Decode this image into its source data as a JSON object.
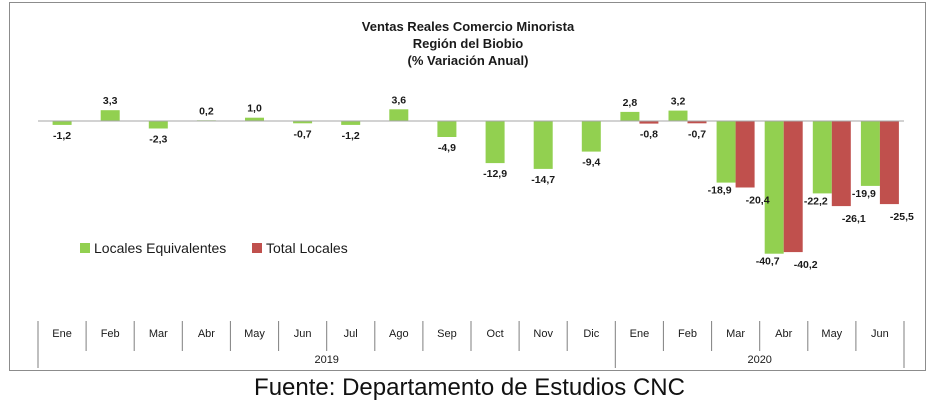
{
  "colors": {
    "locales_equivalentes": "#92d050",
    "total_locales": "#c0504d",
    "axis": "#7f7f7f",
    "text": "#1a1a1a"
  },
  "source_text": "Fuente: Departamento de Estudios CNC",
  "chart_data": {
    "type": "bar",
    "title": [
      "Ventas Reales Comercio Minorista",
      "Región del Biobio",
      "(% Variación Anual)"
    ],
    "categories": [
      "Ene",
      "Feb",
      "Mar",
      "Abr",
      "May",
      "Jun",
      "Jul",
      "Ago",
      "Sep",
      "Oct",
      "Nov",
      "Dic",
      "Ene",
      "Feb",
      "Mar",
      "Abr",
      "May",
      "Jun"
    ],
    "groups": [
      {
        "label": "2019",
        "start": 0,
        "end": 11
      },
      {
        "label": "2020",
        "start": 12,
        "end": 17
      }
    ],
    "series": [
      {
        "name": "Locales Equivalentes",
        "color": "#92d050",
        "values": [
          -1.2,
          3.3,
          -2.3,
          0.2,
          1.0,
          -0.7,
          -1.2,
          3.6,
          -4.9,
          -12.9,
          -14.7,
          -9.4,
          2.8,
          3.2,
          -18.9,
          -40.7,
          -22.2,
          -19.9
        ],
        "labels": [
          "-1,2",
          "3,3",
          "-2,3",
          "0,2",
          "1,0",
          "-0,7",
          "-1,2",
          "3,6",
          "-4,9",
          "-12,9",
          "-14,7",
          "-9,4",
          "2,8",
          "3,2",
          "-18,9",
          "-40,7",
          "-22,2",
          "-19,9"
        ]
      },
      {
        "name": "Total Locales",
        "color": "#c0504d",
        "values": [
          null,
          null,
          null,
          null,
          null,
          null,
          null,
          null,
          null,
          null,
          null,
          null,
          -0.8,
          -0.7,
          -20.4,
          -40.2,
          -26.1,
          -25.5
        ],
        "labels": [
          "",
          "",
          "",
          "",
          "",
          "",
          "",
          "",
          "",
          "",
          "",
          "",
          "-0,8",
          "-0,7",
          "-20,4",
          "-40,2",
          "-26,1",
          "-25,5"
        ]
      }
    ],
    "legend_position": "middle-left",
    "grid": false,
    "xlabel": "",
    "ylabel": ""
  }
}
